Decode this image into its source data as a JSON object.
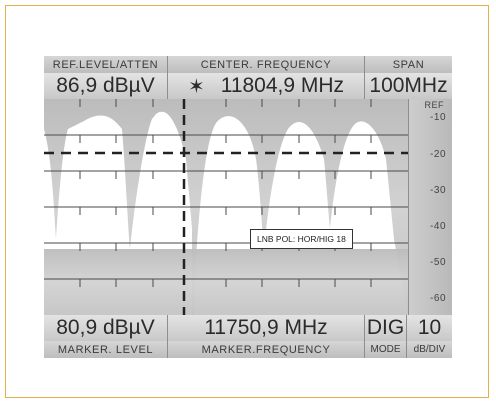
{
  "header": {
    "ref_level_label": "REF.LEVEL/ATTEN",
    "center_freq_label": "CENTER. FREQUENCY",
    "span_label": "SPAN",
    "ref_level_value": "86,9 dBµV",
    "center_marker_symbol": "✶",
    "center_freq_value": "11804,9 MHz",
    "span_value": "100MHz"
  },
  "scale": {
    "ref_label": "REF",
    "ticks": [
      "-10",
      "-20",
      "-30",
      "-40",
      "-50",
      "-60"
    ]
  },
  "overlay": {
    "lnb_text": "LNB POL: HOR/HIG 18"
  },
  "footer": {
    "marker_level_value": "80,9 dBµV",
    "marker_freq_value": "11750,9 MHz",
    "mode_value": "DIG",
    "db_div_value": "10",
    "marker_level_label": "MARKER. LEVEL",
    "marker_freq_label": "MARKER.FREQUENCY",
    "mode_label": "MODE",
    "db_div_label": "dB/DIV"
  },
  "colors": {
    "frame_border": "#e3b04a",
    "screen_bg": "#c9c9c9",
    "trace_fill": "#ffffff"
  }
}
